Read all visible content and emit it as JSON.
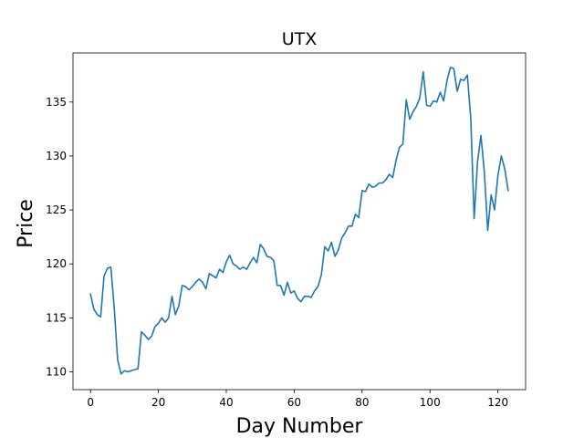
{
  "chart_data": {
    "type": "line",
    "title": "UTX",
    "xlabel": "Day Number",
    "ylabel": "Price",
    "xlim": [
      -5.15,
      128.15
    ],
    "ylim": [
      108.35,
      139.55
    ],
    "xticks": [
      0,
      20,
      40,
      60,
      80,
      100,
      120
    ],
    "yticks": [
      110,
      115,
      120,
      125,
      130,
      135
    ],
    "grid": false,
    "series": [
      {
        "color": "#1f77b4",
        "x": [
          0,
          1,
          2,
          3,
          4,
          5,
          6,
          7,
          8,
          9,
          10,
          11,
          12,
          13,
          14,
          15,
          16,
          17,
          18,
          19,
          20,
          21,
          22,
          23,
          24,
          25,
          26,
          27,
          28,
          29,
          30,
          31,
          32,
          33,
          34,
          35,
          36,
          37,
          38,
          39,
          40,
          41,
          42,
          43,
          44,
          45,
          46,
          47,
          48,
          49,
          50,
          51,
          52,
          53,
          54,
          55,
          56,
          57,
          58,
          59,
          60,
          61,
          62,
          63,
          64,
          65,
          66,
          67,
          68,
          69,
          70,
          71,
          72,
          73,
          74,
          75,
          76,
          77,
          78,
          79,
          80,
          81,
          82,
          83,
          84,
          85,
          86,
          87,
          88,
          89,
          90,
          91,
          92,
          93,
          94,
          95,
          96,
          97,
          98,
          99,
          100,
          101,
          102,
          103,
          104,
          105,
          106,
          107,
          108,
          109,
          110,
          111,
          112,
          113,
          114,
          115,
          116,
          117,
          118,
          119,
          120,
          121,
          122,
          123
        ],
        "values": [
          117.2,
          115.8,
          115.3,
          115.1,
          118.9,
          119.6,
          119.7,
          115.9,
          111.1,
          109.8,
          110.1,
          110.0,
          110.1,
          110.2,
          110.3,
          113.7,
          113.4,
          113.0,
          113.3,
          114.2,
          114.5,
          115.0,
          114.6,
          115.0,
          117.0,
          115.3,
          116.1,
          118.0,
          117.9,
          117.6,
          117.9,
          118.3,
          118.6,
          118.3,
          117.7,
          119.1,
          118.9,
          118.7,
          119.5,
          119.2,
          120.2,
          120.8,
          120.0,
          119.8,
          119.5,
          119.7,
          119.5,
          120.1,
          120.6,
          120.1,
          121.8,
          121.4,
          120.7,
          120.6,
          120.3,
          118.0,
          118.0,
          117.1,
          118.3,
          117.3,
          117.5,
          116.8,
          116.5,
          117.0,
          117.0,
          116.9,
          117.5,
          117.9,
          119.0,
          121.6,
          121.2,
          122.0,
          120.7,
          121.3,
          122.4,
          122.9,
          123.5,
          123.5,
          124.6,
          124.3,
          126.8,
          126.7,
          127.4,
          127.1,
          127.2,
          127.5,
          127.5,
          127.8,
          128.3,
          128.0,
          129.6,
          130.8,
          131.1,
          135.2,
          133.4,
          134.1,
          134.6,
          135.4,
          137.8,
          134.7,
          134.6,
          135.1,
          135.0,
          135.9,
          135.1,
          137.0,
          138.2,
          138.1,
          136.0,
          137.1,
          137.0,
          137.5,
          133.5,
          124.2,
          129.5,
          131.9,
          128.5,
          123.1,
          126.4,
          125.0,
          128.2,
          130.0,
          128.8,
          126.8
        ]
      }
    ]
  }
}
